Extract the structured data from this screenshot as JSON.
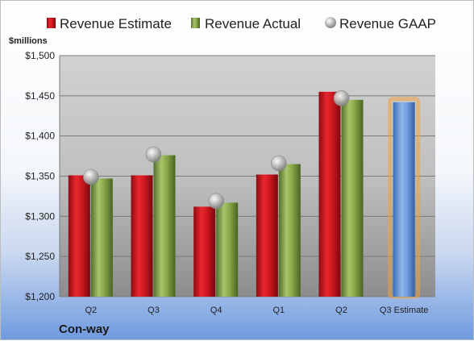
{
  "chart_data": {
    "type": "bar",
    "title": "",
    "unit_label": "$millions",
    "company": "Con-way",
    "categories": [
      "Q2",
      "Q3",
      "Q4",
      "Q1",
      "Q2",
      "Q3 Estimate"
    ],
    "ylim": [
      1200,
      1500
    ],
    "yticks": [
      1200,
      1250,
      1300,
      1350,
      1400,
      1450,
      1500
    ],
    "ytick_labels": [
      "$1,200",
      "$1,250",
      "$1,300",
      "$1,350",
      "$1,400",
      "$1,450",
      "$1,500"
    ],
    "grid": true,
    "legend_position": "top",
    "series": [
      {
        "name": "Revenue Estimate",
        "kind": "bar",
        "color": "#c8141c",
        "values": [
          1351,
          1351,
          1312,
          1352,
          1455,
          null
        ]
      },
      {
        "name": "Revenue Actual",
        "kind": "bar",
        "color": "#7a9a3a",
        "values": [
          1347,
          1376,
          1317,
          1365,
          1445,
          null
        ]
      },
      {
        "name": "Revenue GAAP",
        "kind": "marker",
        "color": "#b0b0b0",
        "values": [
          1349,
          1377,
          1319,
          1366,
          1447,
          null
        ]
      }
    ],
    "highlight": {
      "category_index": 5,
      "value": 1442,
      "color": "#5b8fd3",
      "glow": "#f0a040"
    }
  }
}
